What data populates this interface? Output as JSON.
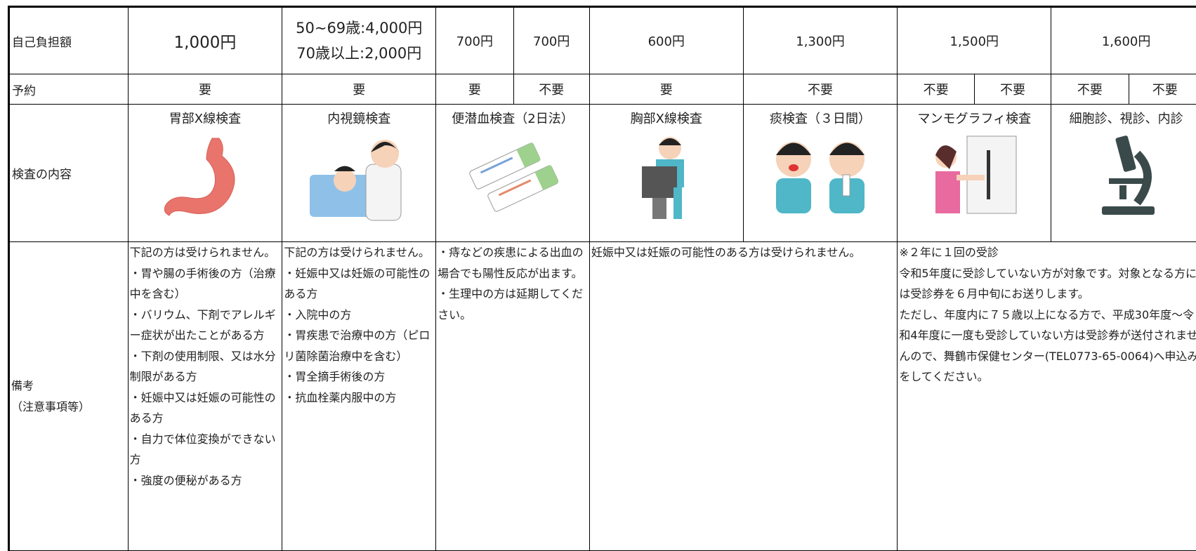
{
  "table": {
    "rows": [
      [
        "自己負担額",
        "1,000円",
        [
          "50~69歳:4,000円",
          "70歳以上:2,000円"
        ],
        "700円",
        "700円",
        "600円",
        "1,300円",
        "1,500円",
        "1,600円"
      ],
      [
        "予約",
        "要",
        "要",
        "要",
        "不要",
        "要",
        "不要",
        "不要",
        "不要",
        "不要",
        "不要"
      ],
      [
        "検査の内容",
        "胃部X線検査",
        "内視鏡検査",
        "便潜血検査（2日法）",
        "胸部X線検査",
        "痰検査（３日間）",
        "マンモグラフィ検査",
        "細胞診、視診、内診"
      ],
      [
        [
          "備考",
          "（注意事項等）"
        ],
        [
          "下記の方は受けられません。",
          "・胃や腸の手術後の方（治療中を含む）",
          "・バリウム、下剤でアレルギー症状が出たことがある方",
          "・下剤の使用制限、又は水分制限がある方",
          "・妊娠中又は妊娠の可能性のある方",
          "・自力で体位変換ができない方",
          "・強度の便秘がある方"
        ],
        [
          "下記の方は受けられません。",
          "・妊娠中又は妊娠の可能性のある方",
          "・入院中の方",
          "・胃疾患で治療中の方（ピロリ菌除菌治療中を含む）",
          "・胃全摘手術後の方",
          "・抗血栓薬内服中の方"
        ],
        [
          "・痔などの疾患による出血の場合でも陽性反応が出ます。",
          "・生理中の方は延期してください。"
        ],
        [
          "妊娠中又は妊娠の可能性のある方は受けられません。"
        ],
        [
          "※２年に１回の受診",
          "令和5年度に受診していない方が対象です。対象となる方には受診券を６月中旬にお送りします。",
          "ただし、年度内に７５歳以上になる方で、平成30年度～令和4年度に一度も受診していない方は受診券が送付されませんので、舞鶴市保健センター(TEL0773-65-0064)へ申込みをしてください。"
        ]
      ]
    ]
  }
}
